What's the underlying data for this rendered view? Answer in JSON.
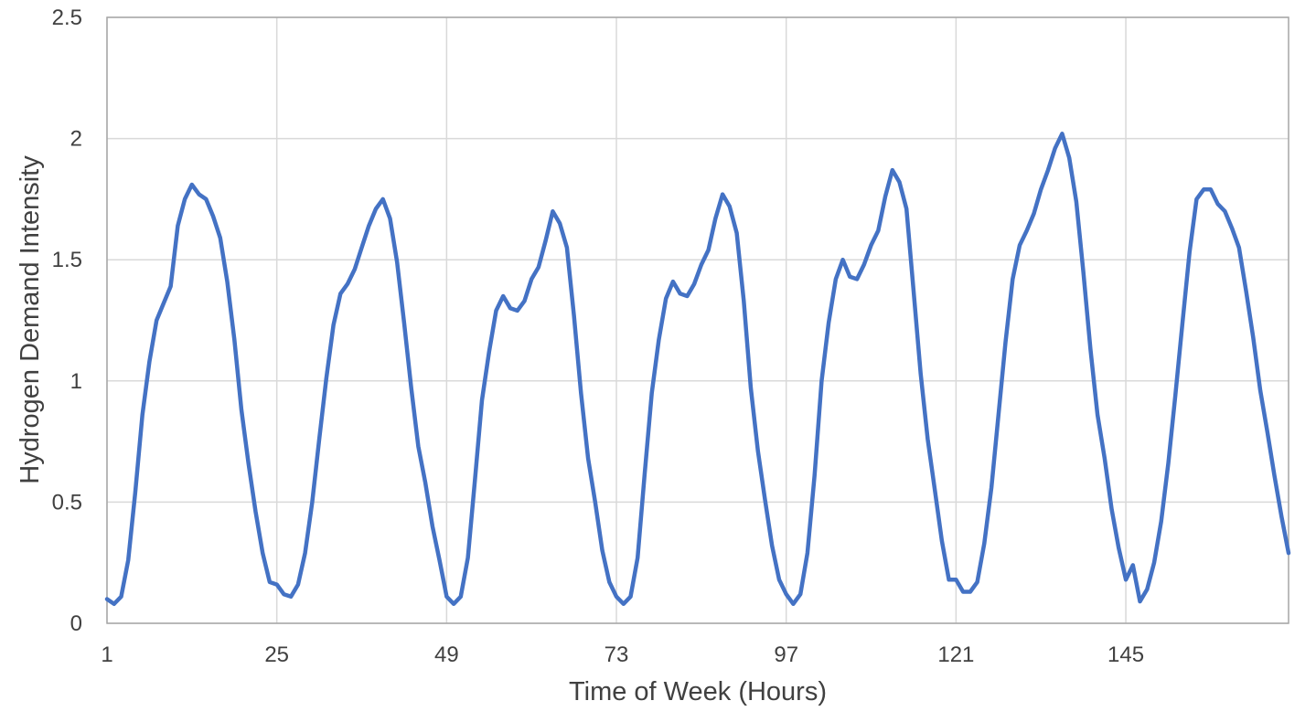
{
  "chart_data": {
    "type": "line",
    "title": "",
    "xlabel": "Time of Week (Hours)",
    "ylabel": "Hydrogen Demand Intensity",
    "xlim": [
      1,
      168
    ],
    "ylim": [
      0,
      2.5
    ],
    "x_ticks": [
      1,
      25,
      49,
      73,
      97,
      121,
      145
    ],
    "x_tick_labels": [
      "1",
      "25",
      "49",
      "73",
      "97",
      "121",
      "145"
    ],
    "y_ticks": [
      0,
      0.5,
      1,
      1.5,
      2,
      2.5
    ],
    "y_tick_labels": [
      "0",
      "0.5",
      "1",
      "1.5",
      "2",
      "2.5"
    ],
    "grid": true,
    "legend": "none",
    "series": [
      {
        "color": "#4472c4",
        "x": [
          1,
          2,
          3,
          4,
          5,
          6,
          7,
          8,
          9,
          10,
          11,
          12,
          13,
          14,
          15,
          16,
          17,
          18,
          19,
          20,
          21,
          22,
          23,
          24,
          25,
          26,
          27,
          28,
          29,
          30,
          31,
          32,
          33,
          34,
          35,
          36,
          37,
          38,
          39,
          40,
          41,
          42,
          43,
          44,
          45,
          46,
          47,
          48,
          49,
          50,
          51,
          52,
          53,
          54,
          55,
          56,
          57,
          58,
          59,
          60,
          61,
          62,
          63,
          64,
          65,
          66,
          67,
          68,
          69,
          70,
          71,
          72,
          73,
          74,
          75,
          76,
          77,
          78,
          79,
          80,
          81,
          82,
          83,
          84,
          85,
          86,
          87,
          88,
          89,
          90,
          91,
          92,
          93,
          94,
          95,
          96,
          97,
          98,
          99,
          100,
          101,
          102,
          103,
          104,
          105,
          106,
          107,
          108,
          109,
          110,
          111,
          112,
          113,
          114,
          115,
          116,
          117,
          118,
          119,
          120,
          121,
          122,
          123,
          124,
          125,
          126,
          127,
          128,
          129,
          130,
          131,
          132,
          133,
          134,
          135,
          136,
          137,
          138,
          139,
          140,
          141,
          142,
          143,
          144,
          145,
          146,
          147,
          148,
          149,
          150,
          151,
          152,
          153,
          154,
          155,
          156,
          157,
          158,
          159,
          160,
          161,
          162,
          163,
          164,
          165,
          166,
          167,
          168
        ],
        "y": [
          0.1,
          0.08,
          0.11,
          0.26,
          0.54,
          0.86,
          1.08,
          1.25,
          1.32,
          1.39,
          1.64,
          1.75,
          1.81,
          1.77,
          1.75,
          1.68,
          1.59,
          1.41,
          1.17,
          0.88,
          0.66,
          0.46,
          0.29,
          0.17,
          0.16,
          0.12,
          0.11,
          0.16,
          0.29,
          0.5,
          0.76,
          1.01,
          1.23,
          1.36,
          1.4,
          1.46,
          1.55,
          1.64,
          1.71,
          1.75,
          1.67,
          1.49,
          1.24,
          0.97,
          0.73,
          0.58,
          0.4,
          0.26,
          0.11,
          0.08,
          0.11,
          0.27,
          0.59,
          0.92,
          1.12,
          1.29,
          1.35,
          1.3,
          1.29,
          1.33,
          1.42,
          1.47,
          1.58,
          1.7,
          1.65,
          1.55,
          1.27,
          0.95,
          0.68,
          0.5,
          0.3,
          0.17,
          0.11,
          0.08,
          0.11,
          0.27,
          0.62,
          0.95,
          1.17,
          1.34,
          1.41,
          1.36,
          1.35,
          1.4,
          1.48,
          1.54,
          1.67,
          1.77,
          1.72,
          1.61,
          1.33,
          0.97,
          0.71,
          0.51,
          0.32,
          0.18,
          0.12,
          0.08,
          0.12,
          0.29,
          0.61,
          1.0,
          1.24,
          1.42,
          1.5,
          1.43,
          1.42,
          1.48,
          1.56,
          1.62,
          1.76,
          1.87,
          1.82,
          1.71,
          1.37,
          1.03,
          0.76,
          0.55,
          0.34,
          0.18,
          0.18,
          0.13,
          0.13,
          0.17,
          0.33,
          0.56,
          0.86,
          1.16,
          1.42,
          1.56,
          1.62,
          1.69,
          1.79,
          1.87,
          1.96,
          2.02,
          1.92,
          1.74,
          1.45,
          1.13,
          0.86,
          0.68,
          0.47,
          0.31,
          0.18,
          0.24,
          0.09,
          0.14,
          0.25,
          0.42,
          0.66,
          0.94,
          1.24,
          1.53,
          1.75,
          1.79,
          1.79,
          1.73,
          1.7,
          1.63,
          1.55,
          1.37,
          1.18,
          0.96,
          0.79,
          0.61,
          0.44,
          0.29
        ]
      }
    ]
  }
}
